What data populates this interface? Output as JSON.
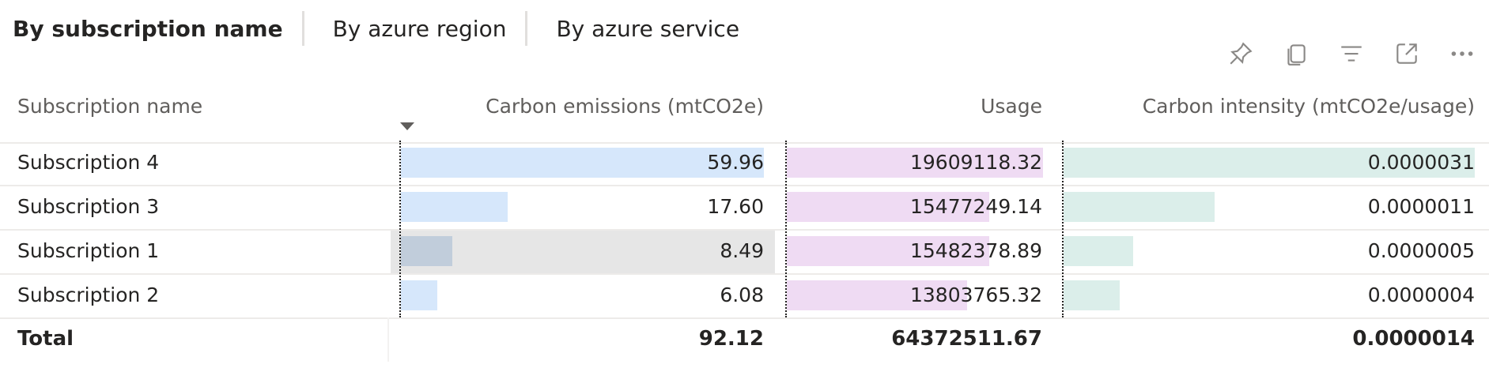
{
  "tabs": [
    {
      "label": "By subscription name",
      "active": true
    },
    {
      "label": "By azure region",
      "active": false
    },
    {
      "label": "By azure service",
      "active": false
    }
  ],
  "toolbar": {
    "icons": [
      "pin-icon",
      "copy-icon",
      "filter-icon",
      "focus-mode-icon",
      "more-options-icon"
    ]
  },
  "table": {
    "columns": [
      "Subscription name",
      "Carbon emissions (mtCO2e)",
      "Usage",
      "Carbon intensity (mtCO2e/usage)"
    ],
    "sorted_column": "Carbon emissions (mtCO2e)",
    "sort_direction": "descending",
    "rows": [
      {
        "name": "Subscription 4",
        "emissions": "59.96",
        "usage": "19609118.32",
        "intensity": "0.0000031",
        "emissions_frac": 1.0,
        "usage_frac": 1.0,
        "intensity_frac": 1.0
      },
      {
        "name": "Subscription 3",
        "emissions": "17.60",
        "usage": "15477249.14",
        "intensity": "0.0000011",
        "emissions_frac": 0.294,
        "usage_frac": 0.79,
        "intensity_frac": 0.367
      },
      {
        "name": "Subscription 1",
        "emissions": "8.49",
        "usage": "15482378.89",
        "intensity": "0.0000005",
        "emissions_frac": 0.142,
        "usage_frac": 0.79,
        "intensity_frac": 0.17,
        "highlighted": true
      },
      {
        "name": "Subscription 2",
        "emissions": "6.08",
        "usage": "13803765.32",
        "intensity": "0.0000004",
        "emissions_frac": 0.101,
        "usage_frac": 0.704,
        "intensity_frac": 0.137
      }
    ],
    "total": {
      "label": "Total",
      "emissions": "92.12",
      "usage": "64372511.67",
      "intensity": "0.0000014"
    }
  },
  "colors": {
    "emissions_bar": "#d6e7fb",
    "usage_bar": "#efdbf3",
    "intensity_bar": "#dbeeea",
    "highlight_bar": "#c1cddb",
    "highlight_row": "#e6e6e6"
  }
}
